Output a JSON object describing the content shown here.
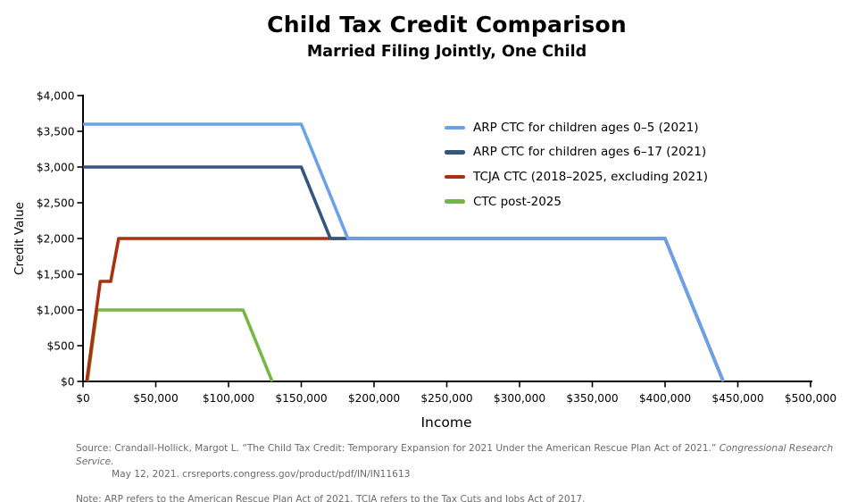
{
  "chart_data": {
    "type": "line",
    "title": "Child Tax Credit Comparison",
    "subtitle": "Married Filing Jointly, One Child",
    "xlabel": "Income",
    "ylabel": "Credit Value",
    "xlim": [
      0,
      500000
    ],
    "ylim": [
      0,
      4000
    ],
    "grid": false,
    "legend_position": "upper right inside plot",
    "x_ticks": [
      {
        "v": 0,
        "label": "$0"
      },
      {
        "v": 50000,
        "label": "$50,000"
      },
      {
        "v": 100000,
        "label": "$100,000"
      },
      {
        "v": 150000,
        "label": "$150,000"
      },
      {
        "v": 200000,
        "label": "$200,000"
      },
      {
        "v": 250000,
        "label": "$250,000"
      },
      {
        "v": 300000,
        "label": "$300,000"
      },
      {
        "v": 350000,
        "label": "$350,000"
      },
      {
        "v": 400000,
        "label": "$400,000"
      },
      {
        "v": 450000,
        "label": "$450,000"
      },
      {
        "v": 500000,
        "label": "$500,000"
      }
    ],
    "y_ticks": [
      {
        "v": 0,
        "label": "$0"
      },
      {
        "v": 500,
        "label": "$500"
      },
      {
        "v": 1000,
        "label": "$1,000"
      },
      {
        "v": 1500,
        "label": "$1,500"
      },
      {
        "v": 2000,
        "label": "$2,000"
      },
      {
        "v": 2500,
        "label": "$2,500"
      },
      {
        "v": 3000,
        "label": "$3,000"
      },
      {
        "v": 3500,
        "label": "$3,500"
      },
      {
        "v": 4000,
        "label": "$4,000"
      }
    ],
    "series": [
      {
        "name": "ARP CTC for children ages 0–5 (2021)",
        "color": "#6BA1E8",
        "points": [
          [
            0,
            3600
          ],
          [
            150000,
            3600
          ],
          [
            182000,
            2000
          ],
          [
            400000,
            2000
          ],
          [
            440000,
            0
          ]
        ]
      },
      {
        "name": "ARP CTC for children ages 6–17 (2021)",
        "color": "#33567E",
        "points": [
          [
            0,
            3000
          ],
          [
            150000,
            3000
          ],
          [
            170000,
            2000
          ],
          [
            400000,
            2000
          ],
          [
            440000,
            0
          ]
        ]
      },
      {
        "name": "TCJA CTC (2018–2025, excluding 2021)",
        "color": "#AC300F",
        "points": [
          [
            2500,
            0
          ],
          [
            11833,
            1400
          ],
          [
            19000,
            1400
          ],
          [
            24500,
            2000
          ],
          [
            400000,
            2000
          ],
          [
            440000,
            0
          ]
        ]
      },
      {
        "name": "CTC post-2025",
        "color": "#74B843",
        "points": [
          [
            3000,
            0
          ],
          [
            9667,
            1000
          ],
          [
            110000,
            1000
          ],
          [
            130000,
            0
          ]
        ]
      }
    ],
    "paint_order": [
      3,
      2,
      1,
      0
    ],
    "axis_color": "#000000"
  },
  "footer": {
    "source_prefix": "Source: Crandall-Hollick, Margot L. “The Child Tax Credit: Temporary Expansion for 2021 Under the American Rescue Plan Act of 2021.” ",
    "source_italic": "Congressional Research Service.",
    "source_line2": "May 12, 2021. crsreports.congress.gov/product/pdf/IN/IN11613",
    "note": "Note: ARP refers to the American Rescue Plan Act of 2021. TCJA refers to the Tax Cuts and Jobs Act of 2017."
  }
}
